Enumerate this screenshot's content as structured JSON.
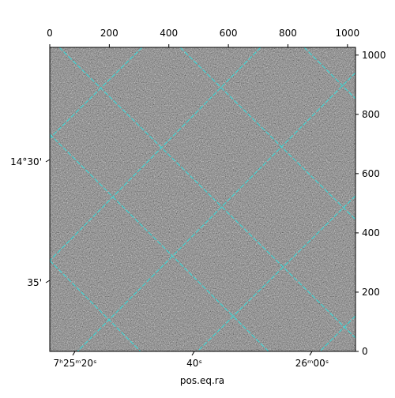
{
  "chart_data": {
    "type": "image",
    "xlabel": "pos.eq.ra",
    "xlim": [
      0,
      1027
    ],
    "xticks": [
      0,
      200,
      400,
      600,
      800,
      1000
    ],
    "ylim": [
      0,
      1026
    ],
    "yticks": [
      0,
      200,
      400,
      600,
      800,
      1000
    ],
    "ra_ticks": [
      "7ʰ25ᵐ20ˢ",
      "40ˢ",
      "26ᵐ00ˢ"
    ],
    "dec_ticks": [
      "14°30'",
      "35'"
    ]
  }
}
